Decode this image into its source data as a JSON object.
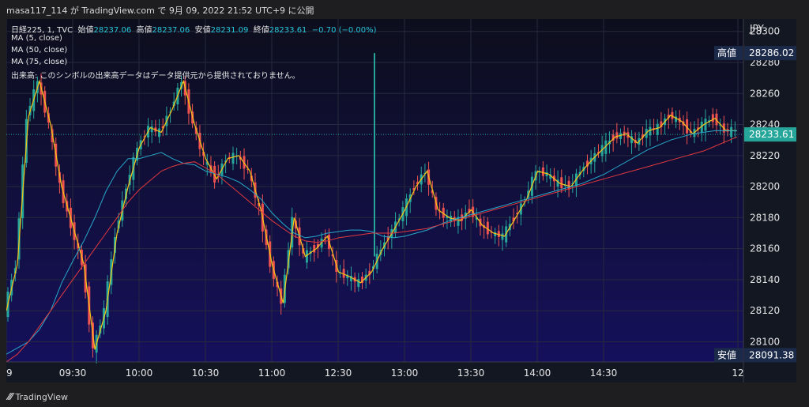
{
  "header": {
    "text": "masa117_114 が TradingView.com で 9月 09, 2022 21:52 UTC+9 に公開"
  },
  "legend": {
    "symbol": "日経225, 1, TVC",
    "ohlc": [
      {
        "label": "始値",
        "value": "28237.06"
      },
      {
        "label": "高値",
        "value": "28237.06"
      },
      {
        "label": "安値",
        "value": "28231.09"
      },
      {
        "label": "終値",
        "value": "28233.61"
      }
    ],
    "change": "−0.70 (−0.00%)",
    "ma_lines": [
      "MA (5, close)",
      "MA (50, close)",
      "MA (75, close)"
    ],
    "volume_note": "出来高: このシンボルの出来高データはデータ提供元から提供されておりません。"
  },
  "footer": {
    "brand": "TradingView"
  },
  "chart_data": {
    "type": "line",
    "currency": "JPY",
    "x_ticks": [
      "9",
      "09:30",
      "10:00",
      "10:30",
      "11:00",
      "12:30",
      "13:00",
      "13:30",
      "14:00",
      "14:30",
      "12"
    ],
    "y_ticks": [
      28100,
      28120,
      28140,
      28160,
      28180,
      28200,
      28220,
      28240,
      28260,
      28280,
      28300
    ],
    "ylim": [
      28087,
      28308
    ],
    "price_labels": [
      {
        "label": "高値",
        "value": "28286.02",
        "price": 28286.02
      },
      {
        "label": "",
        "value": "28233.61",
        "price": 28233.61
      },
      {
        "label": "安値",
        "value": "28091.38",
        "price": 28091.38
      }
    ],
    "colors": {
      "ma5": "#f5c518",
      "ma50": "#26a9c9",
      "ma75": "#e0393e",
      "up": "#26a69a",
      "down": "#ef5350",
      "last": "#26a69a"
    },
    "series": [
      {
        "name": "MA (5, close)",
        "key": "ma5",
        "values": [
          28120,
          28150,
          28245,
          28268,
          28240,
          28200,
          28175,
          28150,
          28095,
          28120,
          28170,
          28200,
          28225,
          28238,
          28235,
          28250,
          28268,
          28240,
          28218,
          28205,
          28218,
          28220,
          28210,
          28185,
          28150,
          28125,
          28180,
          28155,
          28160,
          28168,
          28145,
          28142,
          28138,
          28145,
          28160,
          28172,
          28185,
          28200,
          28210,
          28185,
          28180,
          28178,
          28185,
          28175,
          28170,
          28168,
          28180,
          28192,
          28210,
          28208,
          28202,
          28200,
          28210,
          28218,
          28225,
          28232,
          28234,
          28228,
          28236,
          28238,
          28246,
          28242,
          28234,
          28240,
          28244,
          28236,
          28236
        ]
      },
      {
        "name": "MA (50, close)",
        "key": "ma50",
        "values": [
          28092,
          28096,
          28100,
          28108,
          28120,
          28138,
          28152,
          28165,
          28180,
          28197,
          28210,
          28218,
          28218,
          28220,
          28222,
          28218,
          28215,
          28214,
          28210,
          28208,
          28206,
          28203,
          28198,
          28192,
          28183,
          28176,
          28170,
          28167,
          28168,
          28170,
          28171,
          28172,
          28172,
          28171,
          28168,
          28167,
          28168,
          28170,
          28172,
          28175,
          28178,
          28180,
          28182,
          28184,
          28186,
          28188,
          28190,
          28192,
          28194,
          28196,
          28198,
          28200,
          28202,
          28205,
          28208,
          28212,
          28216,
          28220,
          28224,
          28227,
          28230,
          28232,
          28234,
          28235,
          28236,
          28236,
          28236
        ]
      },
      {
        "name": "MA (75, close)",
        "key": "ma75",
        "values": [
          28087,
          28092,
          28100,
          28110,
          28120,
          28130,
          28140,
          28150,
          28160,
          28170,
          28180,
          28190,
          28198,
          28204,
          28210,
          28213,
          28215,
          28216,
          28212,
          28208,
          28202,
          28196,
          28190,
          28184,
          28178,
          28173,
          28168,
          28165,
          28164,
          28165,
          28167,
          28168,
          28169,
          28170,
          28170,
          28170,
          28171,
          28172,
          28173,
          28175,
          28177,
          28179,
          28181,
          28183,
          28185,
          28187,
          28189,
          28191,
          28193,
          28195,
          28197,
          28199,
          28201,
          28203,
          28205,
          28207,
          28209,
          28211,
          28213,
          28215,
          28217,
          28219,
          28221,
          28223,
          28226,
          28229,
          28232
        ]
      }
    ]
  }
}
